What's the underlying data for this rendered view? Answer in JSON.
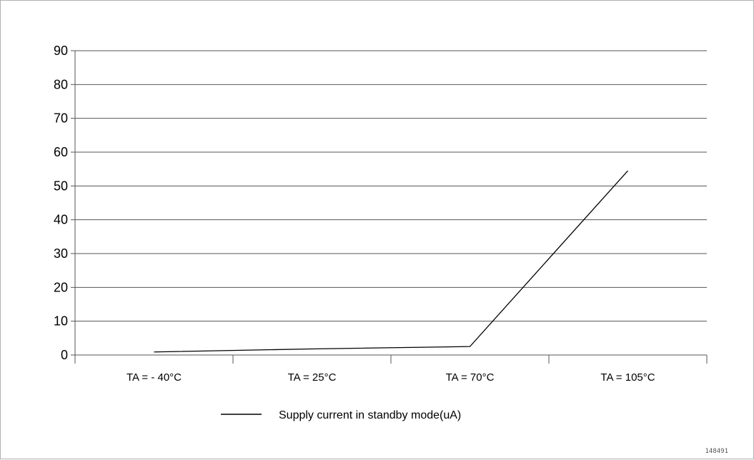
{
  "chart_data": {
    "type": "line",
    "categories": [
      "TA = - 40°C",
      "TA = 25°C",
      "TA = 70°C",
      "TA = 105°C"
    ],
    "series": [
      {
        "name": "Supply current in standby mode(uA)",
        "values": [
          0.9,
          1.8,
          2.5,
          54.5
        ],
        "color": "#000000"
      }
    ],
    "ylim": [
      0,
      90
    ],
    "yticks": [
      0,
      10,
      20,
      30,
      40,
      50,
      60,
      70,
      80,
      90
    ],
    "grid": true,
    "legend_position": "bottom-center",
    "title": "",
    "xlabel": "",
    "ylabel": ""
  },
  "figure_id": "148491"
}
